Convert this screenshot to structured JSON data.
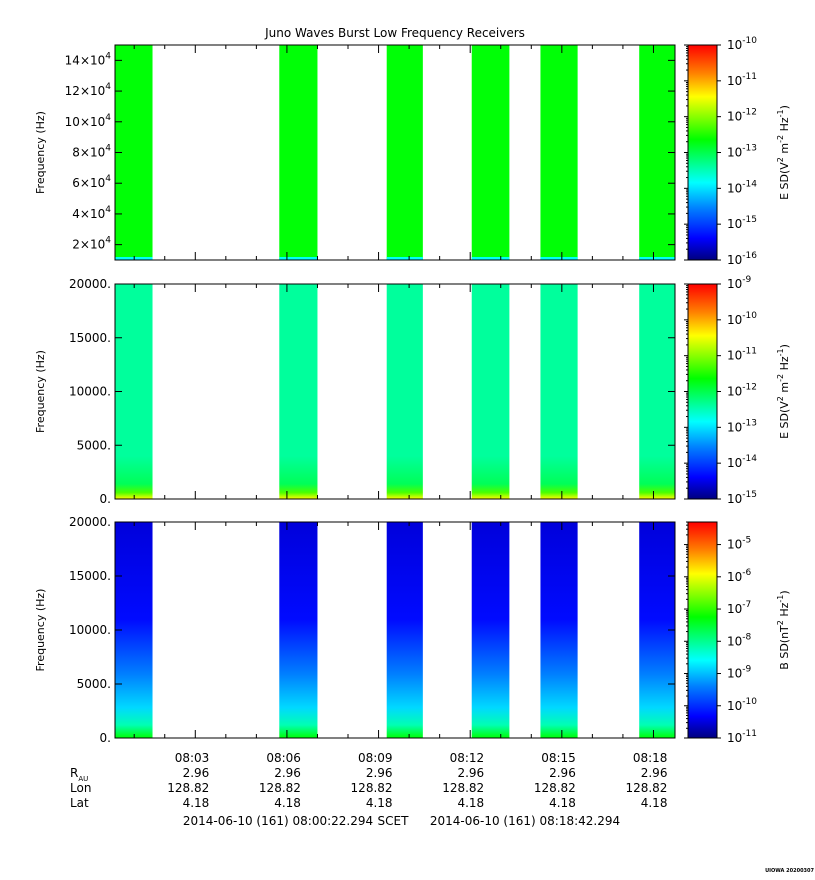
{
  "title": "Juno Waves Burst Low Frequency Receivers",
  "colors": {
    "colormap": [
      "#00007f",
      "#0000ff",
      "#0080ff",
      "#00ffff",
      "#00ff80",
      "#00ff00",
      "#80ff00",
      "#ffff00",
      "#ff8000",
      "#ff0000"
    ],
    "axis": "#000000"
  },
  "chart_data": [
    {
      "type": "heatmap",
      "panel": "top",
      "ylabel": "Frequency (Hz)",
      "ylim": [
        10000,
        150000
      ],
      "yticks": [
        {
          "value": 20000,
          "base": "2×10",
          "exp": "4"
        },
        {
          "value": 40000,
          "base": "4×10",
          "exp": "4"
        },
        {
          "value": 60000,
          "base": "6×10",
          "exp": "4"
        },
        {
          "value": 80000,
          "base": "8×10",
          "exp": "4"
        },
        {
          "value": 100000,
          "base": "10×10",
          "exp": "4"
        },
        {
          "value": 120000,
          "base": "12×10",
          "exp": "4"
        },
        {
          "value": 140000,
          "base": "14×10",
          "exp": "4"
        }
      ],
      "colorbar": {
        "label_parts": [
          "E SD(V",
          "2",
          " m",
          "-2",
          " Hz",
          "-1",
          ")"
        ],
        "log_range": [
          -16,
          -10
        ],
        "tick_exps": [
          "-16",
          "-15",
          "-14",
          "-13",
          "-12",
          "-11",
          "-10"
        ]
      },
      "fill_level": 0.55,
      "low_freq_enhancement": false
    },
    {
      "type": "heatmap",
      "panel": "middle",
      "ylabel": "Frequency (Hz)",
      "ylim": [
        0,
        20000
      ],
      "yticks": [
        {
          "value": 0,
          "label": "0."
        },
        {
          "value": 5000,
          "label": "5000."
        },
        {
          "value": 10000,
          "label": "10000."
        },
        {
          "value": 15000,
          "label": "15000."
        },
        {
          "value": 20000,
          "label": "20000."
        }
      ],
      "colorbar": {
        "label_parts": [
          "E SD(V",
          "2",
          " m",
          "-2",
          " Hz",
          "-1",
          ")"
        ],
        "log_range": [
          -15,
          -9
        ],
        "tick_exps": [
          "-15",
          "-14",
          "-13",
          "-12",
          "-11",
          "-10",
          "-9"
        ]
      },
      "fill_level": 0.42,
      "low_freq_enhancement": true
    },
    {
      "type": "heatmap",
      "panel": "bottom",
      "ylabel": "Frequency (Hz)",
      "ylim": [
        0,
        20000
      ],
      "yticks": [
        {
          "value": 0,
          "label": "0."
        },
        {
          "value": 5000,
          "label": "5000."
        },
        {
          "value": 10000,
          "label": "10000."
        },
        {
          "value": 15000,
          "label": "15000."
        },
        {
          "value": 20000,
          "label": "20000."
        }
      ],
      "colorbar": {
        "label_parts": [
          "B SD(nT",
          "2",
          " Hz",
          "-1",
          ")"
        ],
        "log_range": [
          -11,
          -4.3
        ],
        "tick_exps": [
          "-11",
          "-10",
          "-9",
          "-8",
          "-7",
          "-6",
          "-5"
        ]
      },
      "fill_level": 0.18,
      "low_freq_enhancement": true
    }
  ],
  "time_axis": {
    "start_seconds": 22.294,
    "end_seconds": 1122.294,
    "bursts": [
      {
        "start": 22.3,
        "end": 96
      },
      {
        "start": 345,
        "end": 420
      },
      {
        "start": 556,
        "end": 627
      },
      {
        "start": 723,
        "end": 797
      },
      {
        "start": 858,
        "end": 931
      },
      {
        "start": 1052,
        "end": 1122.3
      }
    ],
    "ticks": [
      {
        "t": 180,
        "label": "08:03"
      },
      {
        "t": 360,
        "label": "08:06"
      },
      {
        "t": 540,
        "label": "08:09"
      },
      {
        "t": 720,
        "label": "08:12"
      },
      {
        "t": 900,
        "label": "08:15"
      },
      {
        "t": 1080,
        "label": "08:18"
      }
    ],
    "minor_tick_step": 60
  },
  "ephemeris": {
    "row_labels": {
      "r": "R",
      "r_sub": "AU",
      "lon": "Lon",
      "lat": "Lat"
    },
    "r_values": [
      "2.96",
      "2.96",
      "2.96",
      "2.96",
      "2.96",
      "2.96"
    ],
    "lon_values": [
      "128.82",
      "128.82",
      "128.82",
      "128.82",
      "128.82",
      "128.82"
    ],
    "lat_values": [
      "4.18",
      "4.18",
      "4.18",
      "4.18",
      "4.18",
      "4.18"
    ]
  },
  "footer": {
    "start_time": "2014-06-10 (161) 08:00:22.294",
    "scet": "SCET",
    "end_time": "2014-06-10 (161) 08:18:42.294"
  },
  "watermark": "UIOWA 20200307"
}
